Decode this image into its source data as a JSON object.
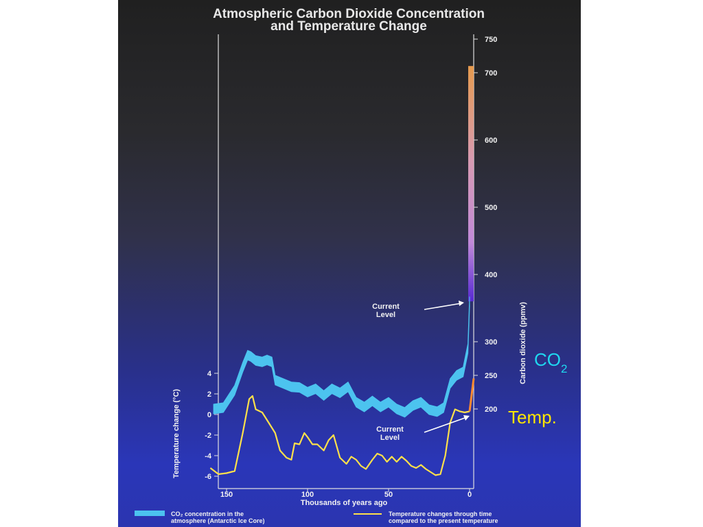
{
  "chart_data": {
    "type": "line",
    "title_lines": [
      "Atmospheric Carbon Dioxide Concentration",
      "and Temperature Change"
    ],
    "xlabel": "Thousands of years ago",
    "ylabel_left": "Temperature change (°C)",
    "ylabel_right": "Carbon dioxide (ppmv)",
    "xlim": [
      160,
      0
    ],
    "ylim_left": [
      -7,
      5
    ],
    "ylim_right": [
      150,
      750
    ],
    "x_ticks": [
      "150",
      "100",
      "50",
      "0"
    ],
    "y_ticks_left": [
      "4",
      "2",
      "0",
      "-2",
      "-4",
      "-6"
    ],
    "y_ticks_right": [
      "750",
      "700",
      "600",
      "500",
      "400",
      "300",
      "250",
      "200"
    ],
    "series": [
      {
        "name": "CO₂ concentration in the atmosphere (Antarctic Ice Core)",
        "axis": "right",
        "color": "#4cc3ef",
        "x": [
          158,
          152,
          145,
          140,
          137,
          135,
          132,
          128,
          125,
          122,
          120,
          115,
          110,
          105,
          100,
          95,
          90,
          85,
          80,
          75,
          70,
          65,
          60,
          55,
          50,
          45,
          40,
          35,
          30,
          25,
          20,
          16,
          12,
          8,
          4,
          1,
          0
        ],
        "y": [
          200,
          202,
          228,
          262,
          280,
          278,
          272,
          270,
          273,
          270,
          243,
          238,
          233,
          232,
          225,
          230,
          220,
          230,
          224,
          233,
          210,
          203,
          212,
          203,
          210,
          200,
          195,
          205,
          210,
          199,
          196,
          202,
          238,
          250,
          255,
          290,
          360
        ]
      },
      {
        "name": "Temperature changes through time compared to the present temperature",
        "axis": "left",
        "color": "#ffe14a",
        "x": [
          160,
          155,
          150,
          145,
          140,
          136,
          134,
          132,
          128,
          124,
          120,
          117,
          113,
          110,
          108,
          105,
          102,
          100,
          97,
          94,
          90,
          87,
          84,
          80,
          76,
          73,
          70,
          67,
          64,
          60,
          57,
          54,
          51,
          48,
          45,
          42,
          39,
          36,
          33,
          30,
          27,
          24,
          21,
          18,
          15,
          12,
          9,
          6,
          3,
          0
        ],
        "y": [
          -5.2,
          -5.8,
          -5.7,
          -5.5,
          -1.8,
          1.5,
          1.8,
          0.5,
          0.2,
          -0.8,
          -1.8,
          -3.5,
          -4.2,
          -4.4,
          -2.8,
          -2.9,
          -1.8,
          -2.2,
          -2.9,
          -2.9,
          -3.5,
          -2.5,
          -2.0,
          -4.2,
          -4.8,
          -4.1,
          -4.4,
          -5.0,
          -5.3,
          -4.4,
          -3.8,
          -4.0,
          -4.6,
          -4.1,
          -4.6,
          -4.1,
          -4.5,
          -5.0,
          -5.2,
          -4.9,
          -5.3,
          -5.6,
          -5.9,
          -5.8,
          -4.0,
          -0.8,
          0.5,
          0.3,
          0.2,
          0.3
        ]
      }
    ],
    "annotations": [
      {
        "lines": [
          "Current",
          "Level"
        ],
        "points_to": "CO₂ current level"
      },
      {
        "lines": [
          "Current",
          "Level"
        ],
        "points_to": "Temperature current level"
      }
    ],
    "legend": {
      "placement": "bottom"
    },
    "grid": false
  },
  "overlay": {
    "co2_main": "CO",
    "co2_sub": "2",
    "temp_label": "Temp."
  },
  "colors": {
    "co2_band": "#4cc3ef",
    "temp_line": "#ffe14a",
    "overlay_co2": "#1fd8f0",
    "overlay_temp": "#ffe600"
  }
}
